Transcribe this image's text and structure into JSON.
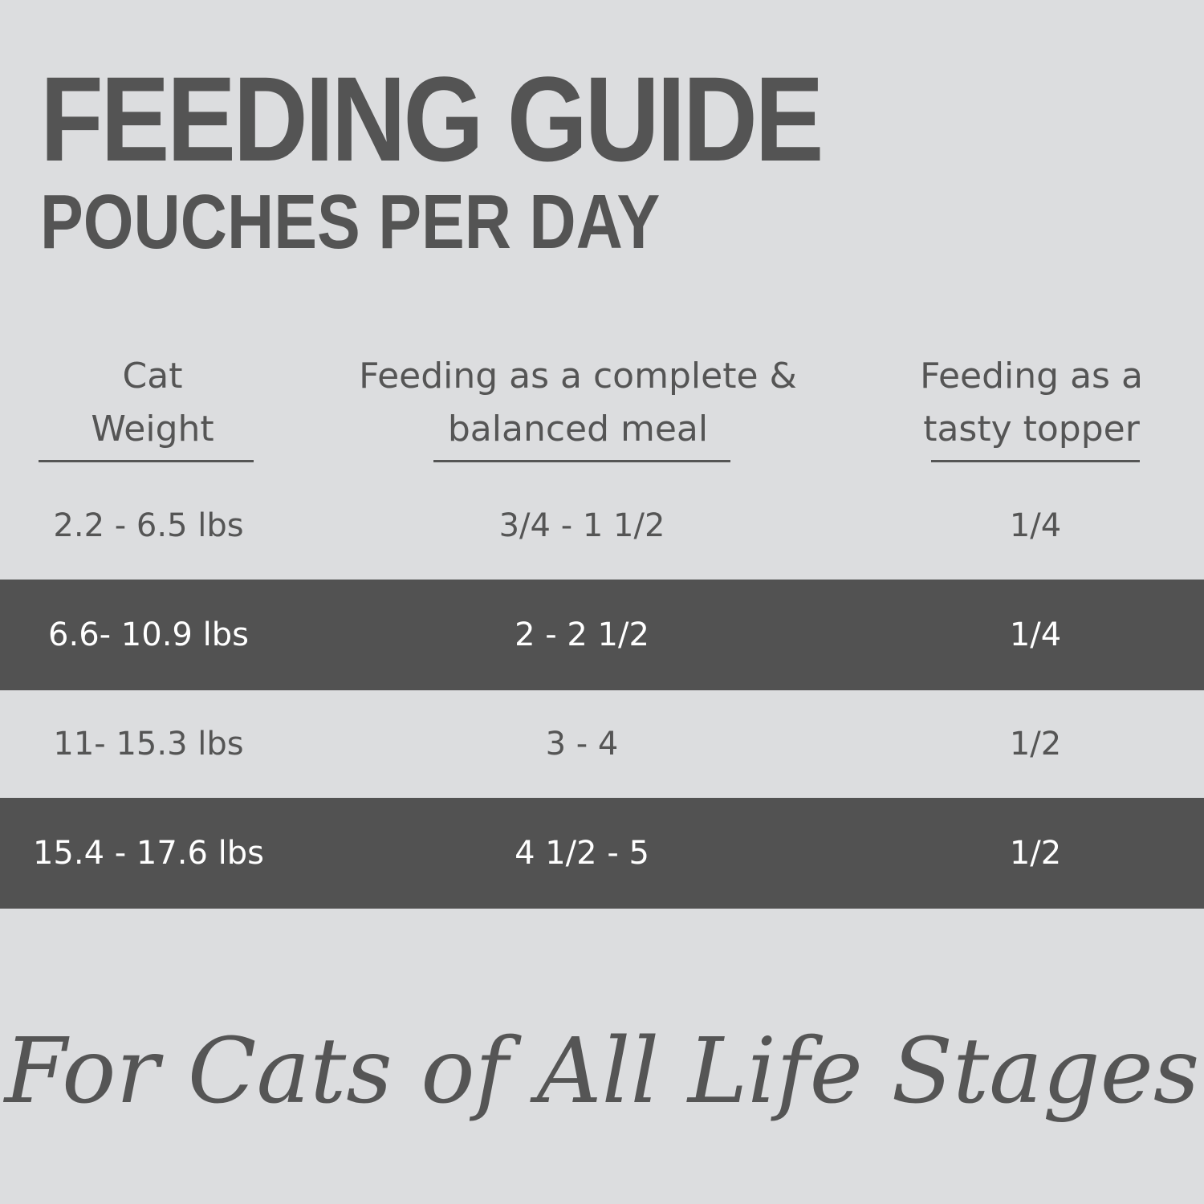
{
  "header": {
    "title": "FEEDING GUIDE",
    "subtitle": "POUCHES PER DAY"
  },
  "table": {
    "columns": [
      [
        "Cat",
        "Weight"
      ],
      [
        "Feeding as a complete &",
        "balanced meal"
      ],
      [
        "Feeding as a",
        "tasty topper"
      ]
    ],
    "rows": [
      [
        "2.2 - 6.5 lbs",
        "3/4 - 1 1/2",
        "1/4"
      ],
      [
        "6.6- 10.9 lbs",
        "2 - 2 1/2",
        "1/4"
      ],
      [
        "11- 15.3 lbs",
        "3 - 4",
        "1/2"
      ],
      [
        "15.4 - 17.6 lbs",
        "4 1/2 - 5",
        "1/2"
      ]
    ]
  },
  "footer": "For Cats of All Life Stages"
}
